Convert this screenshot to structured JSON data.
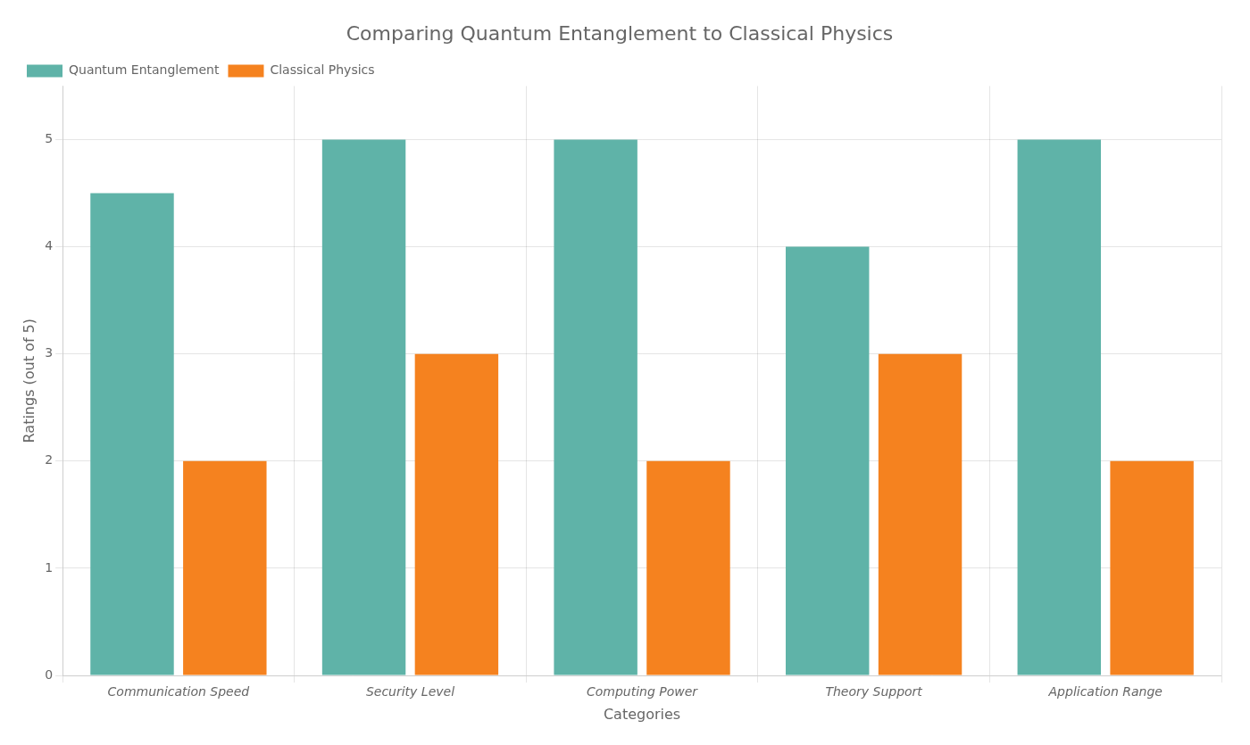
{
  "chart_data": {
    "type": "bar",
    "title": "Comparing Quantum Entanglement to Classical Physics",
    "xlabel": "Categories",
    "ylabel": "Ratings (out of 5)",
    "categories": [
      "Communication Speed",
      "Security Level",
      "Computing Power",
      "Theory Support",
      "Application Range"
    ],
    "series": [
      {
        "name": "Quantum Entanglement",
        "color": "#5fb3a8",
        "values": [
          4.5,
          5,
          5,
          4,
          5
        ]
      },
      {
        "name": "Classical Physics",
        "color": "#f5821f",
        "values": [
          2,
          3,
          2,
          3,
          2
        ]
      }
    ],
    "ylim": [
      0,
      5.5
    ],
    "yticks": [
      0,
      1,
      2,
      3,
      4,
      5
    ],
    "grid": true,
    "legend": "upper left"
  }
}
